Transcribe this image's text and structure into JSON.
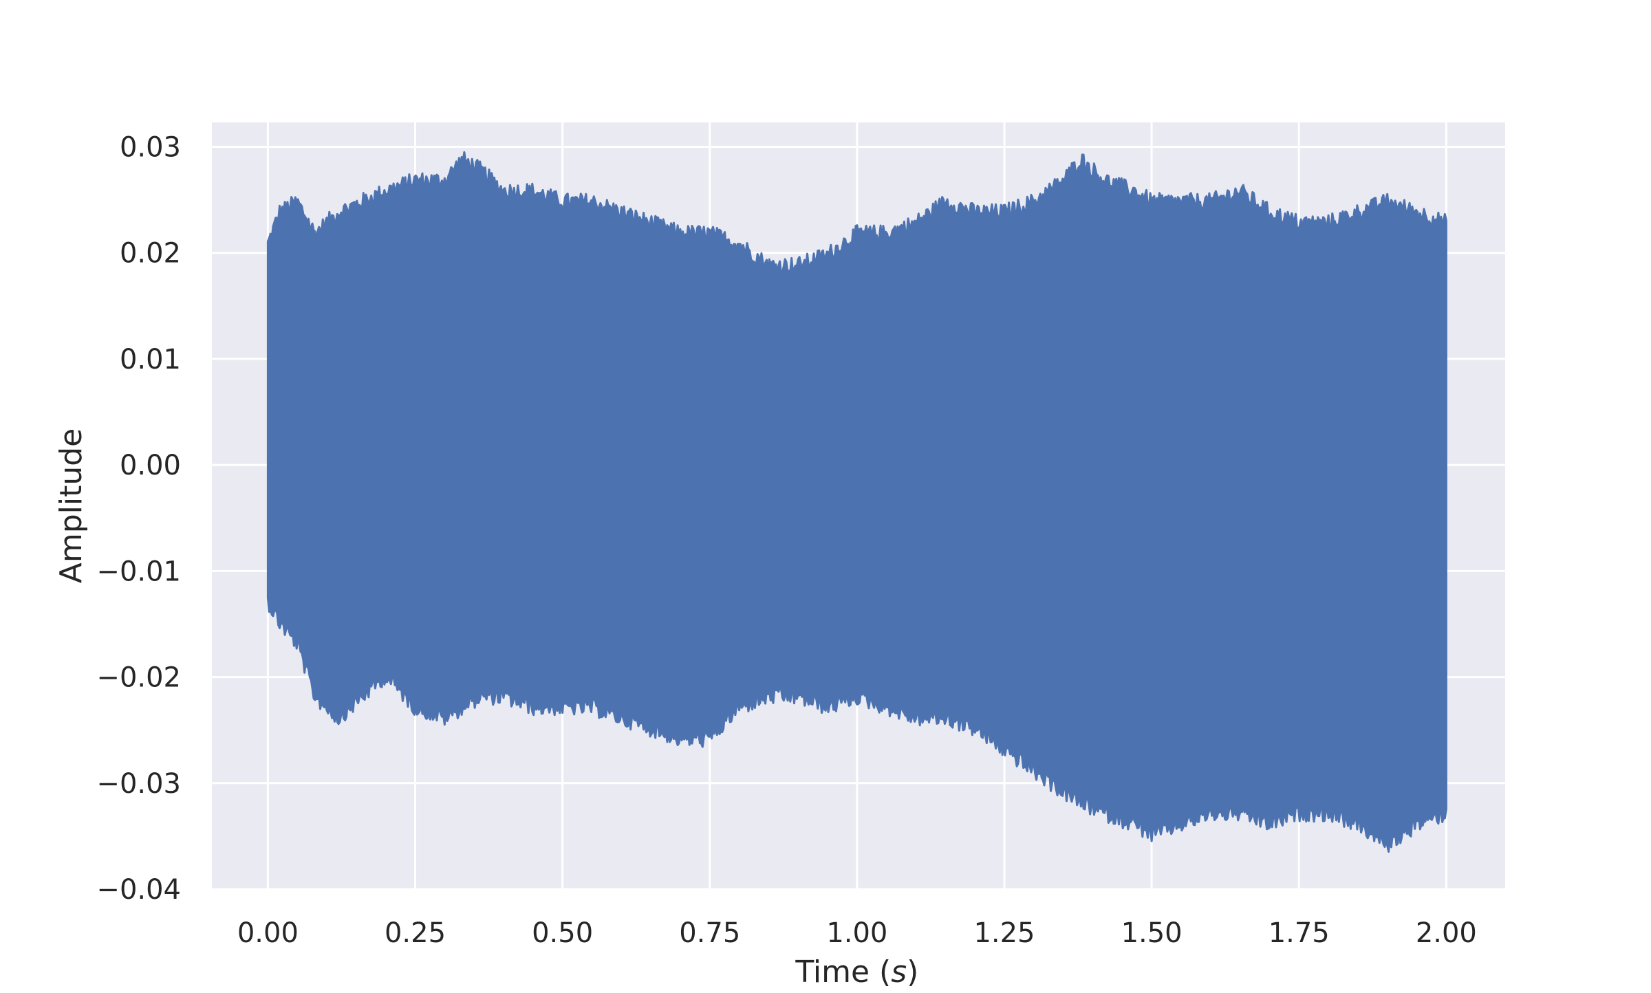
{
  "chart_data": {
    "type": "area",
    "title": "",
    "xlabel": "Time (s)",
    "xlabel_parts": {
      "prefix": "Time (",
      "var": "s",
      "suffix": ")"
    },
    "ylabel": "Amplitude",
    "xlim": [
      -0.095,
      2.1
    ],
    "ylim": [
      -0.04,
      0.0323
    ],
    "x_ticks": [
      0.0,
      0.25,
      0.5,
      0.75,
      1.0,
      1.25,
      1.5,
      1.75,
      2.0
    ],
    "x_tick_labels": [
      "0.00",
      "0.25",
      "0.50",
      "0.75",
      "1.00",
      "1.25",
      "1.50",
      "1.75",
      "2.00"
    ],
    "y_ticks": [
      -0.04,
      -0.03,
      -0.02,
      -0.01,
      0.0,
      0.01,
      0.02,
      0.03
    ],
    "y_tick_labels": [
      "−0.04",
      "−0.03",
      "−0.02",
      "−0.01",
      "0.00",
      "0.01",
      "0.02",
      "0.03"
    ],
    "grid": true,
    "background_color": "#eaeaf2",
    "grid_color": "#ffffff",
    "series": [
      {
        "color": "#4c72b0",
        "envelope": {
          "x": [
            0.0,
            0.02,
            0.05,
            0.08,
            0.12,
            0.16,
            0.2,
            0.25,
            0.3,
            0.33,
            0.36,
            0.4,
            0.45,
            0.5,
            0.55,
            0.6,
            0.65,
            0.7,
            0.75,
            0.8,
            0.85,
            0.9,
            0.95,
            1.0,
            1.05,
            1.1,
            1.15,
            1.2,
            1.25,
            1.3,
            1.35,
            1.38,
            1.42,
            1.47,
            1.5,
            1.55,
            1.6,
            1.65,
            1.7,
            1.75,
            1.8,
            1.85,
            1.9,
            1.95,
            2.0
          ],
          "upper": [
            0.021,
            0.024,
            0.025,
            0.022,
            0.024,
            0.025,
            0.026,
            0.027,
            0.027,
            0.029,
            0.028,
            0.026,
            0.026,
            0.025,
            0.025,
            0.024,
            0.023,
            0.022,
            0.022,
            0.021,
            0.019,
            0.019,
            0.02,
            0.022,
            0.022,
            0.023,
            0.025,
            0.024,
            0.024,
            0.025,
            0.027,
            0.029,
            0.027,
            0.026,
            0.025,
            0.025,
            0.025,
            0.026,
            0.024,
            0.023,
            0.023,
            0.024,
            0.025,
            0.024,
            0.023
          ],
          "lower": [
            -0.013,
            -0.015,
            -0.017,
            -0.022,
            -0.024,
            -0.022,
            -0.02,
            -0.023,
            -0.024,
            -0.023,
            -0.022,
            -0.022,
            -0.023,
            -0.023,
            -0.023,
            -0.024,
            -0.025,
            -0.026,
            -0.026,
            -0.023,
            -0.022,
            -0.022,
            -0.023,
            -0.022,
            -0.023,
            -0.024,
            -0.024,
            -0.025,
            -0.027,
            -0.029,
            -0.031,
            -0.032,
            -0.033,
            -0.034,
            -0.035,
            -0.034,
            -0.033,
            -0.033,
            -0.034,
            -0.033,
            -0.033,
            -0.034,
            -0.036,
            -0.034,
            -0.033
          ]
        }
      }
    ]
  }
}
